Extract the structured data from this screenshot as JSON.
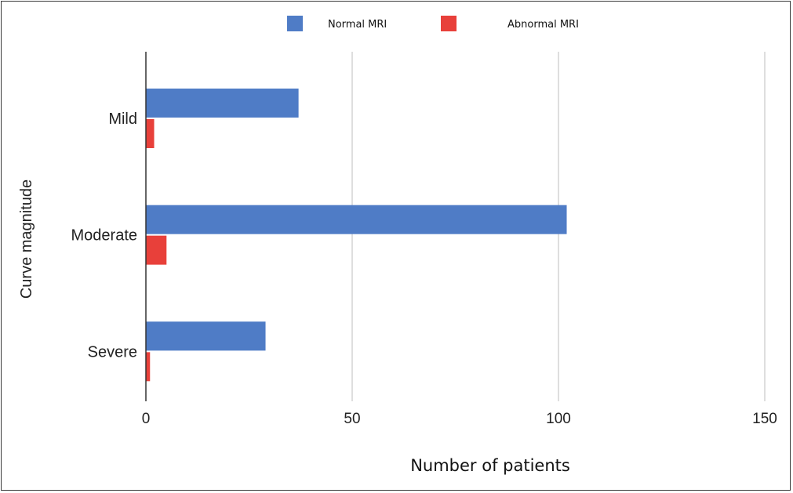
{
  "chart_data": {
    "type": "bar",
    "orientation": "horizontal",
    "categories": [
      "Mild",
      "Moderate",
      "Severe"
    ],
    "series": [
      {
        "name": "Normal MRI",
        "color": "#4f7cc6",
        "values": [
          37,
          102,
          29
        ]
      },
      {
        "name": "Abnormal MRI",
        "color": "#e8403a",
        "values": [
          2,
          5,
          1
        ]
      }
    ],
    "xlabel": "Number of patients",
    "ylabel": "Curve magnitude",
    "xlim": [
      0,
      150
    ],
    "xticks": [
      "0",
      "50",
      "100",
      "150"
    ],
    "grid": "vertical",
    "legend_position": "top-center"
  }
}
